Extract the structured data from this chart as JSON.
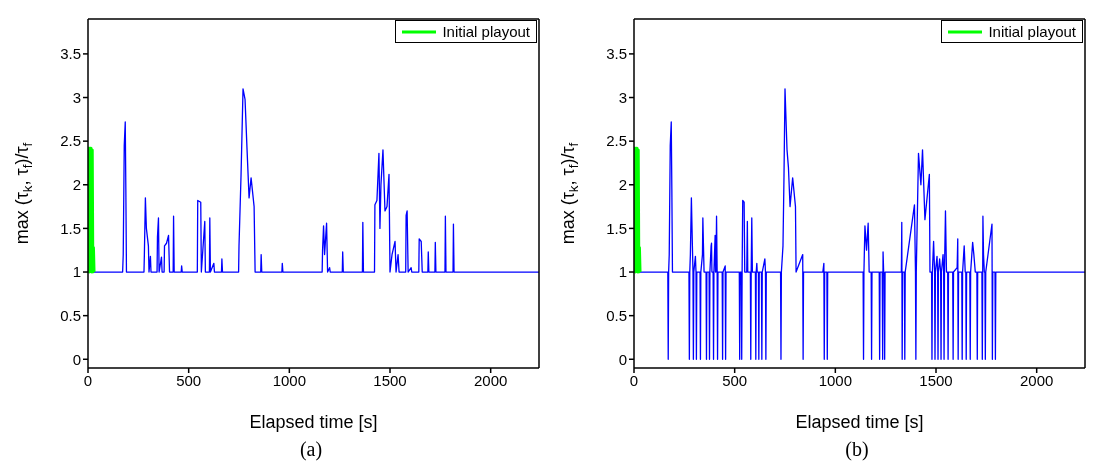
{
  "chart_data": [
    {
      "type": "line",
      "xlabel": "Elapsed time [s]",
      "ylabel": "max (τ$_{k}$, τ$_{f}$)/τ$_{f}$",
      "annotations": [
        "(a)"
      ],
      "xlim": [
        0,
        2240
      ],
      "ylim": [
        -0.1,
        3.9
      ],
      "xticks": [
        0,
        500,
        1000,
        1500,
        2000
      ],
      "yticks": [
        0,
        0.5,
        1,
        1.5,
        2,
        2.5,
        3,
        3.5
      ],
      "legend": "top right",
      "marker": "none",
      "line_style": "solid",
      "series": [
        {
          "color": "#0000ff",
          "x": [
            0,
            172,
            175,
            180,
            185,
            188,
            191,
            278,
            280,
            285,
            290,
            300,
            303,
            310,
            313,
            343,
            345,
            350,
            353,
            365,
            368,
            378,
            380,
            390,
            400,
            405,
            423,
            425,
            428,
            463,
            465,
            468,
            543,
            545,
            560,
            563,
            580,
            583,
            603,
            605,
            608,
            625,
            628,
            663,
            665,
            668,
            748,
            750,
            760,
            770,
            780,
            790,
            800,
            810,
            825,
            830,
            858,
            860,
            863,
            963,
            965,
            968,
            1163,
            1165,
            1170,
            1175,
            1185,
            1190,
            1200,
            1203,
            1263,
            1265,
            1268,
            1363,
            1365,
            1368,
            1423,
            1425,
            1435,
            1445,
            1450,
            1455,
            1465,
            1475,
            1485,
            1495,
            1500,
            1510,
            1525,
            1530,
            1540,
            1545,
            1578,
            1580,
            1585,
            1590,
            1605,
            1608,
            1643,
            1645,
            1655,
            1660,
            1688,
            1690,
            1693,
            1723,
            1725,
            1728,
            1773,
            1775,
            1778,
            1813,
            1815,
            1818,
            2240
          ],
          "values": [
            1,
            1,
            1.2,
            2.45,
            2.72,
            1.95,
            1,
            1,
            1.2,
            1.85,
            1.5,
            1.3,
            1,
            1.18,
            1,
            1,
            1.4,
            1.62,
            1,
            1.17,
            1,
            1,
            1.3,
            1.33,
            1.42,
            1,
            1,
            1.64,
            1,
            1,
            1.07,
            1,
            1,
            1.82,
            1.8,
            1,
            1.58,
            1,
            1,
            1.62,
            1,
            1.1,
            1,
            1,
            1.15,
            1,
            1,
            1.3,
            2.1,
            3.1,
            2.98,
            2.4,
            1.85,
            2.08,
            1.75,
            1,
            1,
            1.2,
            1,
            1,
            1.1,
            1,
            1,
            1.25,
            1.53,
            1.2,
            1.56,
            1,
            1.05,
            1,
            1,
            1.23,
            1,
            1,
            1.57,
            1,
            1,
            1.77,
            1.82,
            2.36,
            1.5,
            2.0,
            2.4,
            1.7,
            1.75,
            2.12,
            1,
            1.2,
            1.35,
            1,
            1.2,
            1,
            1,
            1.65,
            1.7,
            1,
            1.05,
            1,
            1,
            1.38,
            1.35,
            1,
            1,
            1.23,
            1,
            1,
            1.34,
            1,
            1,
            1.64,
            1,
            1,
            1.55,
            1,
            1
          ]
        },
        {
          "name": "Initial playout",
          "color": "#00ff00",
          "x": [
            0,
            3,
            6,
            9,
            12,
            15,
            18,
            21,
            24,
            27,
            30
          ],
          "values": [
            1,
            2.42,
            1,
            2.42,
            1.8,
            2.42,
            1,
            2.4,
            1,
            1.28,
            1
          ]
        }
      ]
    },
    {
      "type": "line",
      "xlabel": "Elapsed time [s]",
      "ylabel": "max (τ$_{k}$, τ$_{f}$)/τ$_{f}$",
      "annotations": [
        "(b)"
      ],
      "xlim": [
        0,
        2240
      ],
      "ylim": [
        -0.1,
        3.9
      ],
      "xticks": [
        0,
        500,
        1000,
        1500,
        2000
      ],
      "yticks": [
        0,
        0.5,
        1,
        1.5,
        2,
        2.5,
        3,
        3.5
      ],
      "legend": "top right",
      "marker": "none",
      "line_style": "solid",
      "series": [
        {
          "color": "#0000ff",
          "x": [
            0,
            168,
            170,
            172,
            175,
            180,
            185,
            188,
            191,
            273,
            275,
            277,
            280,
            285,
            290,
            293,
            295,
            297,
            305,
            308,
            310,
            312,
            328,
            330,
            332,
            340,
            342,
            345,
            348,
            358,
            360,
            362,
            373,
            375,
            377,
            383,
            385,
            387,
            393,
            395,
            397,
            403,
            405,
            407,
            410,
            413,
            415,
            417,
            438,
            440,
            442,
            453,
            455,
            457,
            523,
            525,
            527,
            533,
            535,
            537,
            540,
            547,
            550,
            560,
            563,
            565,
            578,
            580,
            582,
            585,
            588,
            603,
            605,
            607,
            610,
            612,
            618,
            620,
            622,
            633,
            635,
            637,
            650,
            653,
            655,
            657,
            728,
            730,
            732,
            740,
            745,
            750,
            760,
            767,
            775,
            788,
            802,
            805,
            838,
            840,
            842,
            938,
            943,
            945,
            947,
            958,
            960,
            962,
            1138,
            1140,
            1142,
            1147,
            1155,
            1163,
            1168,
            1178,
            1180,
            1182,
            1218,
            1220,
            1222,
            1233,
            1235,
            1237,
            1240,
            1243,
            1245,
            1247,
            1328,
            1330,
            1332,
            1334,
            1343,
            1345,
            1347,
            1393,
            1398,
            1400,
            1402,
            1413,
            1425,
            1433,
            1445,
            1467,
            1470,
            1478,
            1480,
            1482,
            1488,
            1493,
            1495,
            1497,
            1505,
            1508,
            1510,
            1512,
            1518,
            1523,
            1525,
            1527,
            1535,
            1538,
            1540,
            1542,
            1547,
            1552,
            1558,
            1560,
            1562,
            1583,
            1585,
            1587,
            1605,
            1608,
            1610,
            1612,
            1628,
            1630,
            1632,
            1640,
            1645,
            1648,
            1650,
            1652,
            1668,
            1670,
            1672,
            1682,
            1688,
            1695,
            1703,
            1705,
            1707,
            1728,
            1730,
            1732,
            1733,
            1736,
            1740,
            1743,
            1745,
            1747,
            1778,
            1780,
            1782,
            1793,
            1795,
            1797,
            2240
          ],
          "values": [
            1,
            1,
            0,
            1,
            1.2,
            2.45,
            2.72,
            1.95,
            1,
            1,
            0,
            1,
            1.2,
            1.85,
            1.3,
            1,
            0,
            1,
            1.18,
            1,
            0,
            1,
            1,
            0,
            1,
            1.2,
            1.62,
            1.3,
            1,
            1,
            0,
            1,
            1,
            0,
            1,
            1.3,
            1.33,
            1,
            1,
            0,
            1,
            1.42,
            1,
            1,
            1.64,
            1,
            0,
            1,
            1,
            0,
            1,
            1.07,
            0,
            1,
            1,
            0,
            1,
            1,
            0,
            1,
            1.82,
            1.8,
            1,
            1,
            1.58,
            1,
            1,
            0,
            1,
            1.62,
            1,
            1,
            0,
            1,
            1.1,
            1,
            1,
            0,
            1,
            1,
            0,
            1,
            1.15,
            1,
            0,
            1,
            1,
            0,
            1,
            1.3,
            2.1,
            3.1,
            2.4,
            2.2,
            1.75,
            2.08,
            1.75,
            1,
            1.2,
            0,
            1,
            1,
            1.1,
            0,
            1,
            1,
            0,
            1,
            1,
            0,
            1,
            1.53,
            1.25,
            1.56,
            1,
            1,
            0,
            1,
            1,
            0,
            1,
            1,
            0,
            1.23,
            1,
            1,
            0,
            1,
            1,
            1.57,
            0,
            1,
            1,
            0,
            1,
            1.77,
            1,
            0,
            1,
            2.36,
            2.0,
            2.4,
            1.6,
            2.12,
            1,
            1,
            0,
            1,
            1.35,
            1,
            0,
            1,
            1.18,
            1,
            0,
            1,
            1.15,
            1,
            0,
            1,
            1.2,
            1,
            0,
            1,
            1.7,
            1,
            1,
            0,
            1,
            1,
            0,
            1,
            1.05,
            1.38,
            0,
            1,
            1,
            0,
            1,
            1.3,
            1,
            1,
            0,
            1,
            1,
            0,
            1,
            1.34,
            1.2,
            1,
            1,
            0,
            1,
            1,
            0,
            1,
            1.64,
            1.2,
            1,
            1,
            0,
            1,
            1.55,
            0,
            1,
            1,
            0,
            1,
            1
          ]
        },
        {
          "name": "Initial playout",
          "color": "#00ff00",
          "x": [
            0,
            3,
            6,
            9,
            12,
            15,
            18,
            21,
            24,
            27,
            30
          ],
          "values": [
            1,
            2.42,
            1,
            2.42,
            1.8,
            2.42,
            1,
            2.4,
            1,
            1.28,
            1
          ]
        }
      ]
    }
  ]
}
